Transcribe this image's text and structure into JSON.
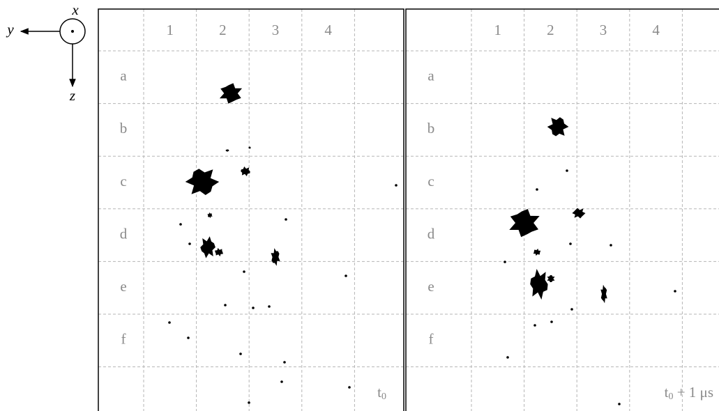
{
  "axes": {
    "x": "x",
    "y": "y",
    "z": "z"
  },
  "panels": [
    {
      "columns": [
        "1",
        "2",
        "3",
        "4"
      ],
      "rows": [
        "a",
        "b",
        "c",
        "d",
        "e",
        "f"
      ],
      "label": {
        "base": "t",
        "sub": "0"
      }
    },
    {
      "columns": [
        "1",
        "2",
        "3",
        "4"
      ],
      "rows": [
        "a",
        "b",
        "c",
        "d",
        "e",
        "f"
      ],
      "label": {
        "base": "t",
        "sub": "0",
        "suffix": " + 1 μs"
      }
    }
  ]
}
